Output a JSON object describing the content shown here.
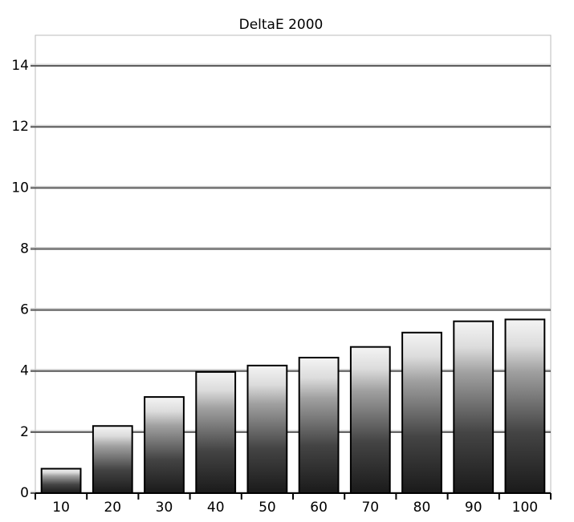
{
  "chart_data": {
    "type": "bar",
    "title": "DeltaE 2000",
    "categories": [
      "10",
      "20",
      "30",
      "40",
      "50",
      "60",
      "70",
      "80",
      "90",
      "100"
    ],
    "values": [
      0.8,
      2.2,
      3.15,
      3.97,
      4.18,
      4.44,
      4.79,
      5.26,
      5.63,
      5.69
    ],
    "ylim": [
      0,
      15
    ],
    "yticks": [
      0,
      2,
      4,
      6,
      8,
      10,
      12,
      14
    ],
    "grid": true
  }
}
